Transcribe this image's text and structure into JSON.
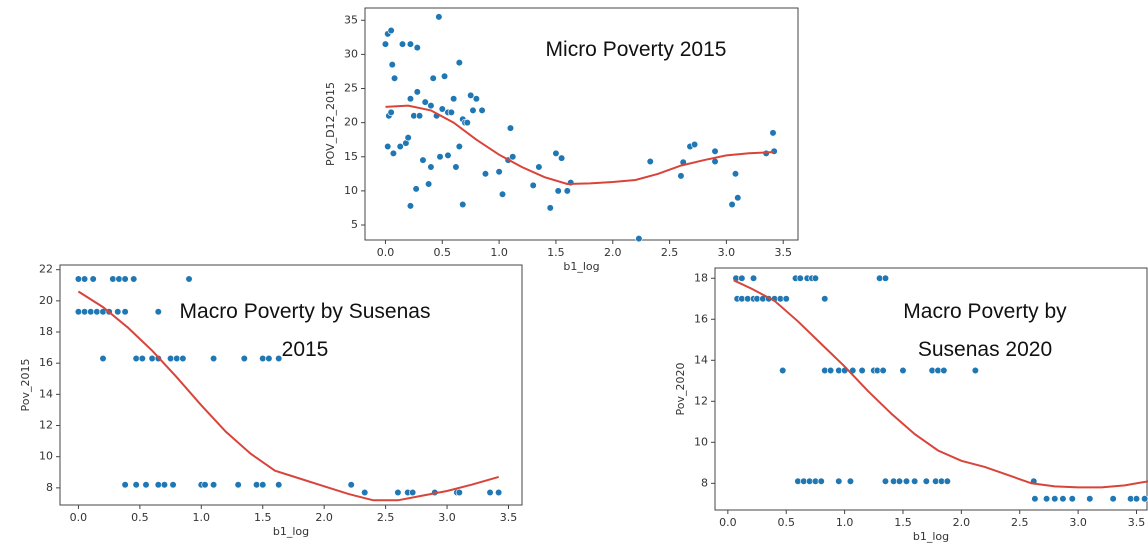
{
  "chart_data": [
    {
      "type": "scatter",
      "title": "Micro Poverty 2015",
      "x_label": "b1_log",
      "y_label": "POV_D12_2015",
      "color": "#1f77b4",
      "x": [
        0.0,
        0.02,
        0.05,
        0.03,
        0.05,
        0.02,
        0.07,
        0.08,
        0.06,
        0.15,
        0.22,
        0.28,
        0.13,
        0.18,
        0.2,
        0.22,
        0.25,
        0.3,
        0.28,
        0.35,
        0.4,
        0.42,
        0.47,
        0.5,
        0.45,
        0.52,
        0.55,
        0.58,
        0.6,
        0.65,
        0.68,
        0.7,
        0.75,
        0.77,
        0.8,
        0.85,
        0.22,
        0.27,
        0.33,
        0.38,
        0.4,
        0.48,
        0.55,
        0.62,
        0.65,
        0.68,
        0.72,
        0.88,
        1.0,
        1.03,
        1.08,
        1.1,
        1.12,
        1.3,
        1.35,
        1.45,
        1.5,
        1.52,
        1.55,
        1.6,
        1.63,
        2.23,
        2.33,
        2.6,
        2.62,
        2.68,
        2.72,
        2.9,
        2.9,
        3.05,
        3.08,
        3.1,
        3.35,
        3.42,
        3.41
      ],
      "values": [
        31.5,
        33,
        33.5,
        21,
        21.5,
        16.5,
        15.5,
        26.5,
        28.5,
        31.5,
        31.5,
        31,
        16.5,
        17,
        17.8,
        23.5,
        21,
        21,
        24.5,
        23,
        22.5,
        26.5,
        35.5,
        22,
        21,
        26.8,
        21.5,
        21.5,
        23.5,
        28.8,
        20.5,
        20,
        24,
        21.8,
        23.5,
        21.8,
        7.8,
        10.3,
        14.5,
        11,
        13.5,
        15,
        15.2,
        13.5,
        16.5,
        8,
        20,
        12.5,
        12.8,
        9.5,
        14.5,
        19.2,
        15,
        10.8,
        13.5,
        7.5,
        15.5,
        10,
        14.8,
        10,
        11.2,
        3,
        14.3,
        12.2,
        14.2,
        16.5,
        16.8,
        14.3,
        15.8,
        8,
        12.5,
        9,
        15.5,
        15.8,
        18.5
      ],
      "line": {
        "color": "#d9443a",
        "x": [
          0.0,
          0.2,
          0.4,
          0.6,
          0.8,
          1.0,
          1.2,
          1.4,
          1.6,
          1.8,
          2.0,
          2.2,
          2.4,
          2.6,
          2.8,
          3.0,
          3.2,
          3.42
        ],
        "values": [
          22.3,
          22.5,
          21.8,
          20,
          17.5,
          15.3,
          13.5,
          12,
          11,
          11.1,
          11.3,
          11.6,
          12.5,
          13.7,
          14.5,
          15.2,
          15.5,
          15.7
        ]
      },
      "xlim": [
        -0.18,
        3.63
      ],
      "ylim": [
        2.8,
        36.8
      ],
      "xticks": [
        {
          "value": 0,
          "label": "0.0"
        },
        0.5,
        {
          "value": 1,
          "label": "1.0"
        },
        1.5,
        {
          "value": 2,
          "label": "2.0"
        },
        2.5,
        {
          "value": 3,
          "label": "3.0"
        },
        3.5
      ],
      "yticks": [
        5,
        10,
        15,
        20,
        25,
        30,
        35
      ]
    },
    {
      "type": "scatter",
      "title": "Macro Poverty by Susenas 2015",
      "x_label": "b1_log",
      "y_label": "Pov_2015",
      "color": "#1f77b4",
      "x": [
        0.0,
        0.05,
        0.12,
        0.28,
        0.33,
        0.38,
        0.45,
        0.9,
        0.0,
        0.05,
        0.1,
        0.15,
        0.2,
        0.25,
        0.32,
        0.38,
        0.65,
        0.2,
        0.47,
        0.52,
        0.6,
        0.65,
        0.75,
        0.8,
        0.85,
        1.1,
        1.35,
        1.5,
        1.55,
        1.63,
        0.38,
        0.47,
        0.55,
        0.65,
        0.7,
        0.77,
        1.0,
        1.03,
        1.1,
        1.3,
        1.45,
        1.5,
        1.63,
        2.22,
        2.33,
        2.6,
        2.68,
        2.72,
        2.9,
        3.08,
        3.1,
        3.35,
        3.42
      ],
      "values": [
        21.4,
        21.4,
        21.4,
        21.4,
        21.4,
        21.4,
        21.4,
        21.4,
        19.3,
        19.3,
        19.3,
        19.3,
        19.3,
        19.3,
        19.3,
        19.3,
        19.3,
        16.3,
        16.3,
        16.3,
        16.3,
        16.3,
        16.3,
        16.3,
        16.3,
        16.3,
        16.3,
        16.3,
        16.3,
        16.3,
        8.2,
        8.2,
        8.2,
        8.2,
        8.2,
        8.2,
        8.2,
        8.2,
        8.2,
        8.2,
        8.2,
        8.2,
        8.2,
        8.2,
        7.7,
        7.7,
        7.7,
        7.7,
        7.7,
        7.7,
        7.7,
        7.7,
        7.7
      ],
      "line": {
        "color": "#d9443a",
        "x": [
          0.0,
          0.2,
          0.4,
          0.6,
          0.8,
          1.0,
          1.2,
          1.4,
          1.6,
          1.8,
          2.0,
          2.2,
          2.4,
          2.6,
          2.8,
          3.0,
          3.2,
          3.42
        ],
        "values": [
          20.6,
          19.6,
          18.3,
          16.8,
          15.1,
          13.3,
          11.6,
          10.2,
          9.1,
          8.6,
          8.1,
          7.6,
          7.2,
          7.2,
          7.5,
          7.8,
          8.2,
          8.7
        ]
      },
      "xlim": [
        -0.15,
        3.61
      ],
      "ylim": [
        6.9,
        22.3
      ],
      "xticks": [
        {
          "value": 0,
          "label": "0.0"
        },
        0.5,
        {
          "value": 1,
          "label": "1.0"
        },
        1.5,
        {
          "value": 2,
          "label": "2.0"
        },
        2.5,
        {
          "value": 3,
          "label": "3.0"
        },
        3.5
      ],
      "yticks": [
        8,
        10,
        12,
        14,
        16,
        18,
        20,
        22
      ]
    },
    {
      "type": "scatter",
      "title": "Macro Poverty by Susenas 2020",
      "x_label": "b1_log",
      "y_label": "Pov_2020",
      "color": "#1f77b4",
      "x": [
        0.07,
        0.12,
        0.22,
        0.58,
        0.62,
        0.68,
        0.72,
        0.75,
        1.3,
        1.35,
        0.08,
        0.12,
        0.17,
        0.22,
        0.25,
        0.3,
        0.35,
        0.4,
        0.45,
        0.5,
        0.83,
        0.47,
        0.83,
        0.88,
        0.95,
        1.0,
        1.07,
        1.15,
        1.25,
        1.28,
        1.33,
        1.5,
        1.75,
        1.8,
        1.85,
        2.12,
        0.6,
        0.65,
        0.7,
        0.75,
        0.8,
        0.95,
        1.05,
        1.35,
        1.42,
        1.47,
        1.53,
        1.6,
        1.7,
        1.78,
        1.83,
        1.88,
        2.62,
        2.63,
        2.73,
        2.8,
        2.87,
        2.95,
        3.1,
        3.3,
        3.45,
        3.5,
        3.57
      ],
      "values": [
        18,
        18,
        18,
        18,
        18,
        18,
        18,
        18,
        18,
        18,
        17,
        17,
        17,
        17,
        17,
        17,
        17,
        17,
        17,
        17,
        17,
        13.5,
        13.5,
        13.5,
        13.5,
        13.5,
        13.5,
        13.5,
        13.5,
        13.5,
        13.5,
        13.5,
        13.5,
        13.5,
        13.5,
        13.5,
        8.1,
        8.1,
        8.1,
        8.1,
        8.1,
        8.1,
        8.1,
        8.1,
        8.1,
        8.1,
        8.1,
        8.1,
        8.1,
        8.1,
        8.1,
        8.1,
        8.1,
        7.25,
        7.25,
        7.25,
        7.25,
        7.25,
        7.25,
        7.25,
        7.25,
        7.25,
        7.25
      ],
      "line": {
        "color": "#d9443a",
        "x": [
          0.05,
          0.2,
          0.4,
          0.6,
          0.8,
          1.0,
          1.2,
          1.4,
          1.6,
          1.8,
          2.0,
          2.2,
          2.4,
          2.6,
          2.8,
          3.0,
          3.2,
          3.4,
          3.6
        ],
        "values": [
          17.9,
          17.5,
          16.9,
          15.9,
          14.8,
          13.7,
          12.5,
          11.4,
          10.4,
          9.6,
          9.1,
          8.8,
          8.4,
          8.0,
          7.85,
          7.8,
          7.8,
          7.9,
          8.1
        ]
      },
      "xlim": [
        -0.11,
        3.59
      ],
      "ylim": [
        6.7,
        18.5
      ],
      "xticks": [
        {
          "value": 0,
          "label": "0.0"
        },
        0.5,
        {
          "value": 1,
          "label": "1.0"
        },
        1.5,
        {
          "value": 2,
          "label": "2.0"
        },
        2.5,
        {
          "value": 3,
          "label": "3.0"
        },
        3.5
      ],
      "yticks": [
        8,
        10,
        12,
        14,
        16,
        18
      ]
    }
  ]
}
